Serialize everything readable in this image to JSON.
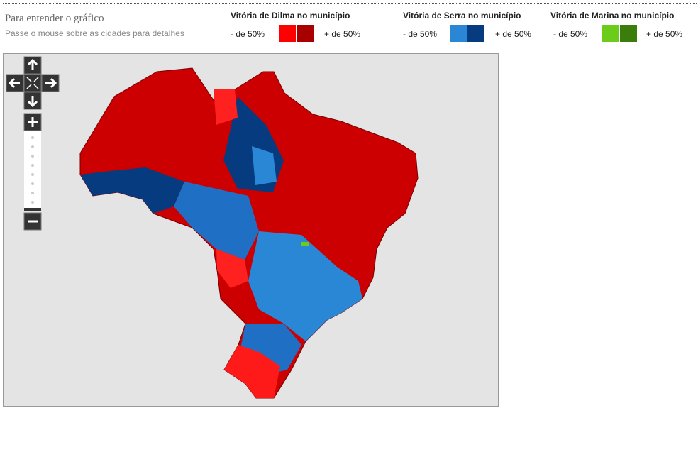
{
  "header": {
    "title": "Para entender o gráfico",
    "subtitle": "Passe o mouse sobre as cidades para detalhes"
  },
  "legend": [
    {
      "label": "Vitória de Dilma no município",
      "low": "- de 50%",
      "high": "+ de 50%",
      "colors": [
        "#ff0000",
        "#a80000"
      ]
    },
    {
      "label": "Vitória de Serra no município",
      "low": "- de 50%",
      "high": "+ de 50%",
      "colors": [
        "#2a87d6",
        "#063b80"
      ]
    },
    {
      "label": "Vitória de Marina no município",
      "low": "- de 50%",
      "high": "+ de 50%",
      "colors": [
        "#6ccc1a",
        "#3a7d0c"
      ]
    }
  ]
}
